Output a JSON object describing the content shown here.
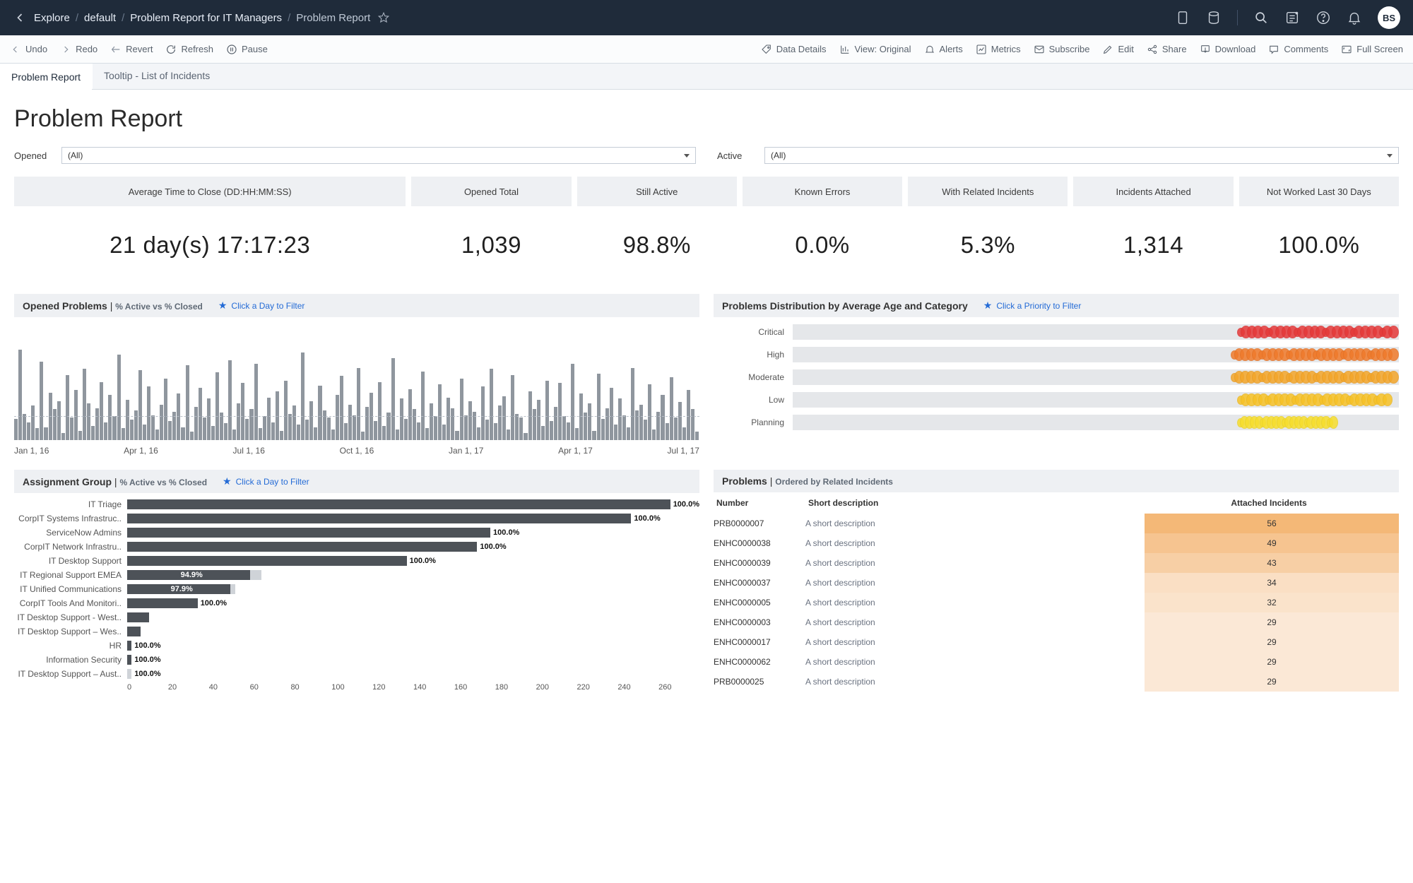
{
  "breadcrumbs": {
    "root": "Explore",
    "proj": "default",
    "wb": "Problem Report for IT Managers",
    "view": "Problem Report"
  },
  "avatar": "BS",
  "actionbar": {
    "undo": "Undo",
    "redo": "Redo",
    "revert": "Revert",
    "refresh": "Refresh",
    "pause": "Pause",
    "dataDetails": "Data Details",
    "view": "View: Original",
    "alerts": "Alerts",
    "metrics": "Metrics",
    "subscribe": "Subscribe",
    "edit": "Edit",
    "share": "Share",
    "download": "Download",
    "comments": "Comments",
    "fullscreen": "Full Screen"
  },
  "tabs": {
    "t1": "Problem Report",
    "t2": "Tooltip - List of Incidents"
  },
  "title": "Problem Report",
  "filters": {
    "opened": {
      "label": "Opened",
      "value": "(All)"
    },
    "active": {
      "label": "Active",
      "value": "(All)"
    }
  },
  "kpis": {
    "labels": {
      "avgClose": "Average Time to Close (DD:HH:MM:SS)",
      "openedTotal": "Opened Total",
      "stillActive": "Still Active",
      "knownErrors": "Known Errors",
      "relatedInc": "With Related Incidents",
      "incAttached": "Incidents Attached",
      "notWorked": "Not Worked Last 30 Days"
    },
    "values": {
      "avgClose": "21 day(s) 17:17:23",
      "openedTotal": "1,039",
      "stillActive": "98.8%",
      "knownErrors": "0.0%",
      "relatedInc": "5.3%",
      "incAttached": "1,314",
      "notWorked": "100.0%"
    }
  },
  "openedPanel": {
    "title": "Opened Problems",
    "sub": "% Active vs % Closed",
    "hint": "Click a Day to Filter",
    "xlabels": [
      "Jan 1, 16",
      "Apr 1, 16",
      "Jul 1, 16",
      "Oct 1, 16",
      "Jan 1, 17",
      "Apr 1, 17",
      "Jul 1, 17"
    ],
    "bar_color": "#8f969e",
    "bars_norm": [
      18,
      76,
      22,
      15,
      29,
      10,
      66,
      11,
      40,
      26,
      33,
      6,
      55,
      19,
      42,
      8,
      60,
      31,
      12,
      27,
      49,
      15,
      38,
      20,
      72,
      10,
      34,
      17,
      25,
      59,
      13,
      45,
      21,
      9,
      30,
      52,
      16,
      24,
      39,
      11,
      63,
      7,
      28,
      44,
      19,
      35,
      12,
      57,
      23,
      14,
      67,
      9,
      31,
      48,
      18,
      26,
      64,
      10,
      20,
      36,
      15,
      41,
      8,
      50,
      22,
      29,
      13,
      74,
      17,
      33,
      11,
      46,
      25,
      19,
      9,
      38,
      54,
      14,
      30,
      21,
      61,
      7,
      28,
      40,
      16,
      49,
      12,
      23,
      69,
      9,
      35,
      18,
      43,
      26,
      15,
      58,
      10,
      31,
      20,
      47,
      13,
      36,
      27,
      8,
      52,
      21,
      33,
      24,
      11,
      45,
      17,
      60,
      14,
      29,
      37,
      9,
      55,
      22,
      19,
      6,
      41,
      26,
      34,
      12,
      50,
      16,
      28,
      48,
      20,
      15,
      64,
      10,
      39,
      23,
      31,
      8,
      56,
      18,
      27,
      44,
      13,
      35,
      21,
      11,
      61,
      25,
      30,
      17,
      47,
      9,
      24,
      38,
      14,
      53,
      19,
      32,
      11,
      42,
      26,
      7
    ]
  },
  "prioPanel": {
    "title": "Problems Distribution by Average Age and Category",
    "hint": "Click a Priority to Filter",
    "track_color": "#e5e7ea",
    "rows": [
      {
        "label": "Critical",
        "color": "#e63939",
        "dot_count": 28,
        "cluster_width_pct": 26,
        "offset_right_pct": 0
      },
      {
        "label": "High",
        "color": "#f07a2b",
        "dot_count": 30,
        "cluster_width_pct": 27,
        "offset_right_pct": 0
      },
      {
        "label": "Moderate",
        "color": "#f4a62a",
        "dot_count": 30,
        "cluster_width_pct": 27,
        "offset_right_pct": 0
      },
      {
        "label": "Low",
        "color": "#f7c227",
        "dot_count": 28,
        "cluster_width_pct": 25,
        "offset_right_pct": 1
      },
      {
        "label": "Planning",
        "color": "#f7de2d",
        "dot_count": 22,
        "cluster_width_pct": 16,
        "offset_right_pct": 10
      }
    ]
  },
  "agPanel": {
    "title": "Assignment Group",
    "sub": "% Active vs % Closed",
    "hint": "Click a Day to Filter",
    "xmax": 260,
    "xtick_step": 20,
    "bar_color": "#4d5258",
    "rows": [
      {
        "label": "IT Triage",
        "value": 252,
        "pct": "100.0%"
      },
      {
        "label": "CorpIT Systems Infrastruc..",
        "value": 229,
        "pct": "100.0%"
      },
      {
        "label": "ServiceNow Admins",
        "value": 165,
        "pct": "100.0%"
      },
      {
        "label": "CorpIT Network Infrastru..",
        "value": 159,
        "pct": "100.0%"
      },
      {
        "label": "IT Desktop Support",
        "value": 127,
        "pct": "100.0%"
      },
      {
        "label": "IT Regional Support EMEA",
        "value": 56,
        "pct": "94.9%",
        "inside": true,
        "tail": 5
      },
      {
        "label": "IT Unified Communications",
        "value": 47,
        "pct": "97.9%",
        "inside": true,
        "tail": 2
      },
      {
        "label": "CorpIT Tools And Monitori..",
        "value": 32,
        "pct": "100.0%"
      },
      {
        "label": "IT Desktop Support - West..",
        "value": 10,
        "pct": ""
      },
      {
        "label": "IT Desktop Support – Wes..",
        "value": 6,
        "pct": ""
      },
      {
        "label": "HR",
        "value": 2,
        "pct": "100.0%"
      },
      {
        "label": "Information Security",
        "value": 2,
        "pct": "100.0%"
      },
      {
        "label": "IT Desktop Support – Aust..",
        "value": 2,
        "pct": "100.0%",
        "faded": true
      }
    ]
  },
  "probsPanel": {
    "title": "Problems",
    "sub": "Ordered by Related Incidents",
    "cols": {
      "num": "Number",
      "desc": "Short description",
      "inc": "Attached Incidents"
    },
    "heatmap_scale": {
      "min_color": "#fbe8d6",
      "max_color": "#f4b877",
      "min_val": 29,
      "max_val": 56
    },
    "rows": [
      {
        "num": "PRB0000007",
        "desc": "A short description",
        "inc": 56
      },
      {
        "num": "ENHC0000038",
        "desc": "A short description",
        "inc": 49
      },
      {
        "num": "ENHC0000039",
        "desc": "A short description",
        "inc": 43
      },
      {
        "num": "ENHC0000037",
        "desc": "A short description",
        "inc": 34
      },
      {
        "num": "ENHC0000005",
        "desc": "A short description",
        "inc": 32
      },
      {
        "num": "ENHC0000003",
        "desc": "A short description",
        "inc": 29
      },
      {
        "num": "ENHC0000017",
        "desc": "A short description",
        "inc": 29
      },
      {
        "num": "ENHC0000062",
        "desc": "A short description",
        "inc": 29
      },
      {
        "num": "PRB0000025",
        "desc": "A short description",
        "inc": 29
      }
    ]
  }
}
